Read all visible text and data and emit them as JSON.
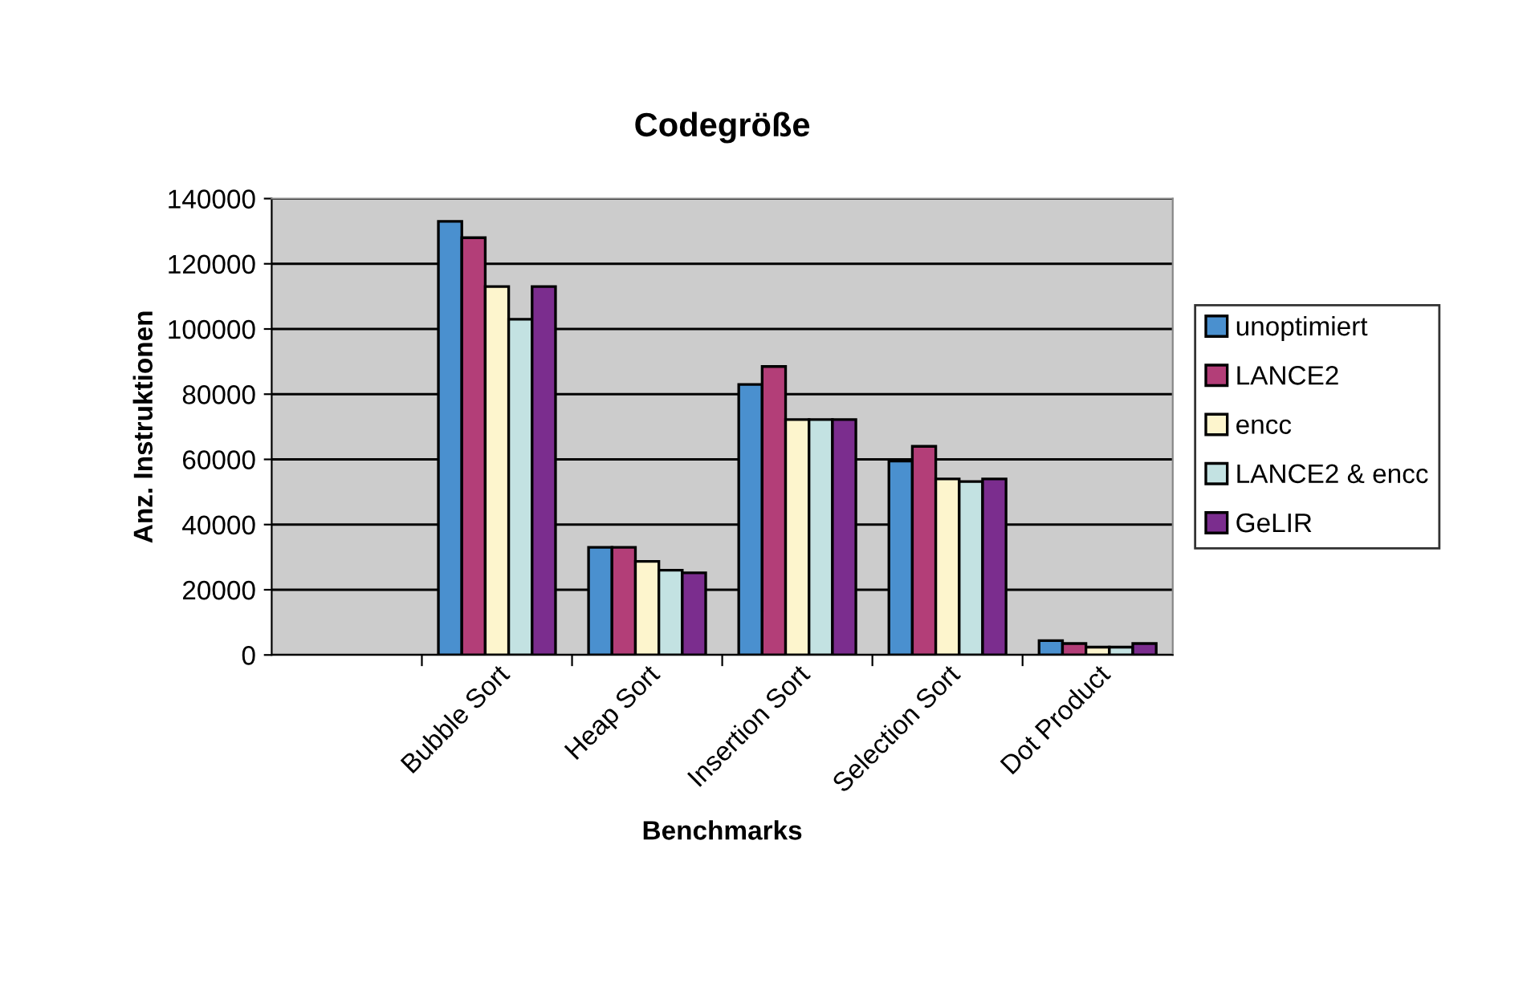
{
  "chart_data": {
    "type": "bar",
    "title": "Codegröße",
    "xlabel": "Benchmarks",
    "ylabel": "Anz. Instruktionen",
    "categories": [
      null,
      "Bubble Sort",
      "Heap Sort",
      "Insertion Sort",
      "Selection Sort",
      "Dot Product"
    ],
    "series": [
      {
        "name": "unoptimiert",
        "color": "#4a90cf",
        "values": [
          null,
          133000,
          33000,
          83000,
          59500,
          4400
        ]
      },
      {
        "name": "LANCE2",
        "color": "#b33e78",
        "values": [
          null,
          128000,
          33000,
          88500,
          64000,
          3500
        ]
      },
      {
        "name": "encc",
        "color": "#fdf5cd",
        "values": [
          null,
          113000,
          28700,
          72200,
          54000,
          2400
        ]
      },
      {
        "name": "LANCE2 & encc",
        "color": "#c3e2e2",
        "values": [
          null,
          103000,
          26000,
          72200,
          53200,
          2400
        ]
      },
      {
        "name": "GeLIR",
        "color": "#7b2d8e",
        "values": [
          null,
          113000,
          25200,
          72200,
          54000,
          3500
        ]
      }
    ],
    "ylim": [
      0,
      140000
    ],
    "yticks": [
      0,
      20000,
      40000,
      60000,
      80000,
      100000,
      120000,
      140000
    ],
    "grid": "y",
    "legend": "right"
  }
}
